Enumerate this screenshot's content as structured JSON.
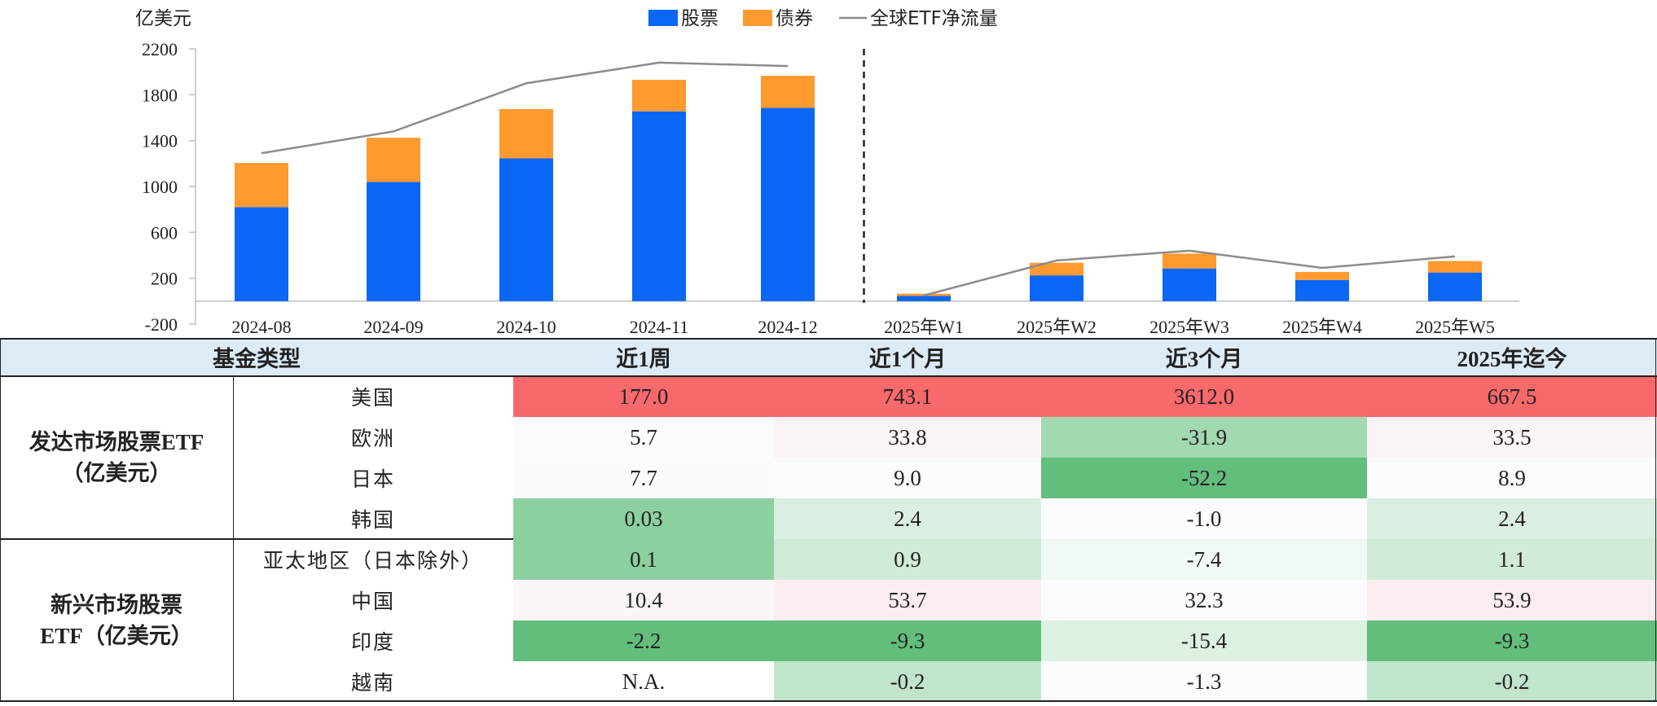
{
  "chart_data": {
    "type": "bar",
    "unit_label": "亿美元",
    "legend": [
      {
        "name": "股票",
        "color": "#0A66F5",
        "kind": "bar"
      },
      {
        "name": "债券",
        "color": "#FF9A2F",
        "kind": "bar"
      },
      {
        "name": "全球ETF净流量",
        "color": "#8C8C8C",
        "kind": "line"
      }
    ],
    "ylim": [
      -200,
      2200
    ],
    "yticks": [
      -200,
      200,
      600,
      1000,
      1400,
      1800,
      2200
    ],
    "categories": [
      "2024-08",
      "2024-09",
      "2024-10",
      "2024-11",
      "2024-12",
      "2025年W1",
      "2025年W2",
      "2025年W3",
      "2025年W4",
      "2025年W5"
    ],
    "series": [
      {
        "name": "股票",
        "stack": true,
        "values": [
          820,
          1040,
          1245,
          1655,
          1685,
          45,
          225,
          285,
          185,
          250
        ]
      },
      {
        "name": "债券",
        "stack": true,
        "values": [
          385,
          385,
          430,
          275,
          280,
          20,
          110,
          130,
          70,
          100
        ]
      },
      {
        "name": "全球ETF净流量",
        "type": "line",
        "values": [
          1290,
          1480,
          1900,
          2080,
          2050,
          50,
          355,
          440,
          290,
          390
        ]
      }
    ],
    "divider_after_index": 4
  },
  "table": {
    "header": {
      "type": "基金类型",
      "c1": "近1周",
      "c2": "近1个月",
      "c3": "近3个月",
      "c4": "2025年迄今"
    },
    "groups": [
      {
        "name_line1": "发达市场股票ETF",
        "name_line2": "（亿美元）"
      },
      {
        "name_line1": "新兴市场股票",
        "name_line2": "ETF（亿美元）"
      }
    ],
    "rows": [
      {
        "label": "美国",
        "values": [
          "177.0",
          "743.1",
          "3612.0",
          "667.5"
        ],
        "colors": [
          "#F8696B",
          "#F8696B",
          "#F8696B",
          "#F8696B"
        ]
      },
      {
        "label": "欧洲",
        "values": [
          "5.7",
          "33.8",
          "-31.9",
          "33.5"
        ],
        "colors": [
          "#FCFCFF",
          "#FCF5F7",
          "#A3D9B1",
          "#FCF5F7"
        ]
      },
      {
        "label": "日本",
        "values": [
          "7.7",
          "9.0",
          "-52.2",
          "8.9"
        ],
        "colors": [
          "#FCFAFD",
          "#FCFCFF",
          "#63BE7B",
          "#FCFCFF"
        ]
      },
      {
        "label": "韩国",
        "values": [
          "0.03",
          "2.4",
          "-1.0",
          "2.4"
        ],
        "colors": [
          "#8CD0A0",
          "#D9EFE1",
          "#FCFCFF",
          "#D9EFE1"
        ]
      },
      {
        "label": "亚太地区（日本除外）",
        "values": [
          "0.1",
          "0.9",
          "-7.4",
          "1.1"
        ],
        "colors": [
          "#8CD0A0",
          "#D0EBD8",
          "#F1F9F4",
          "#D0EBD8"
        ]
      },
      {
        "label": "中国",
        "values": [
          "10.4",
          "53.7",
          "32.3",
          "53.9"
        ],
        "colors": [
          "#FCF6F8",
          "#FCEDF0",
          "#FCFCFF",
          "#FCEDF0"
        ]
      },
      {
        "label": "印度",
        "values": [
          "-2.2",
          "-9.3",
          "-15.4",
          "-9.3"
        ],
        "colors": [
          "#63BE7B",
          "#63BE7B",
          "#DDF1E3",
          "#63BE7B"
        ]
      },
      {
        "label": "越南",
        "values": [
          "N.A.",
          "-0.2",
          "-1.3",
          "-0.2"
        ],
        "colors": [
          "#FFFFFF",
          "#C0E5CB",
          "#FCFCFF",
          "#C0E5CB"
        ]
      }
    ]
  }
}
